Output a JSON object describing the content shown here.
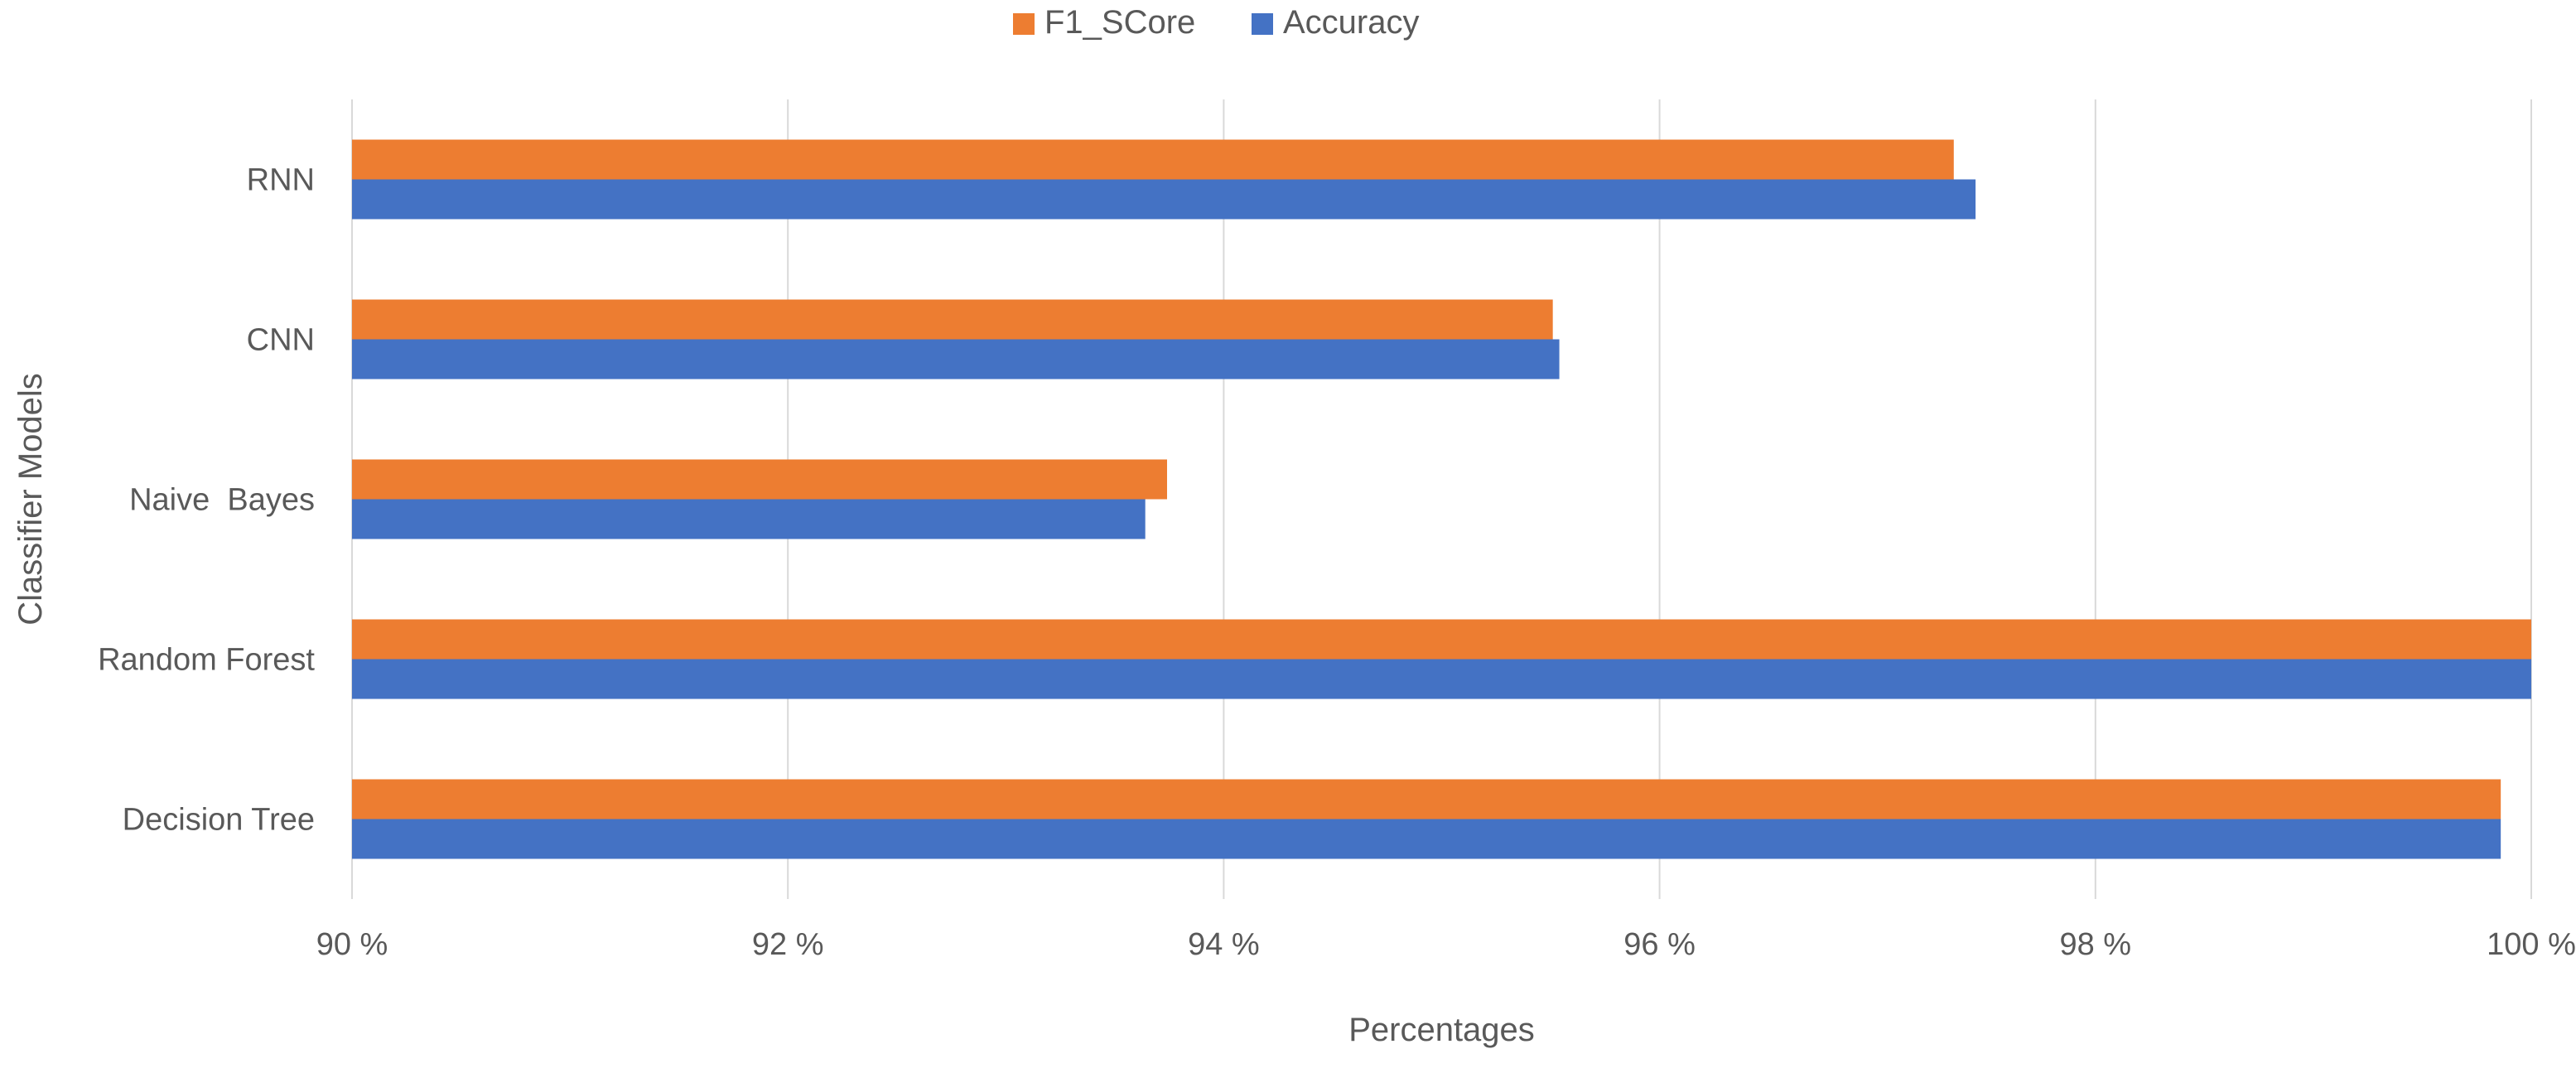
{
  "chart_data": {
    "type": "bar",
    "orientation": "horizontal",
    "title": "",
    "categories": [
      "Decision Tree",
      "Random Forest",
      "Naive  Bayes",
      "CNN",
      "RNN"
    ],
    "series": [
      {
        "name": "F1_SCore",
        "color": "#ED7D31",
        "values": [
          99.86,
          100.0,
          93.74,
          95.51,
          97.35
        ]
      },
      {
        "name": "Accuracy",
        "color": "#4472C4",
        "values": [
          99.86,
          100.0,
          93.64,
          95.54,
          97.45
        ]
      }
    ],
    "xlabel": "Percentages",
    "ylabel": "Classifier Models",
    "xlim": [
      90,
      100
    ],
    "x_ticks": [
      90,
      92,
      94,
      96,
      98,
      100
    ],
    "x_tick_labels": [
      "90 %",
      "92 %",
      "94 %",
      "96 %",
      "98 %",
      "100 %"
    ],
    "grid": true,
    "legend_position": "top"
  }
}
